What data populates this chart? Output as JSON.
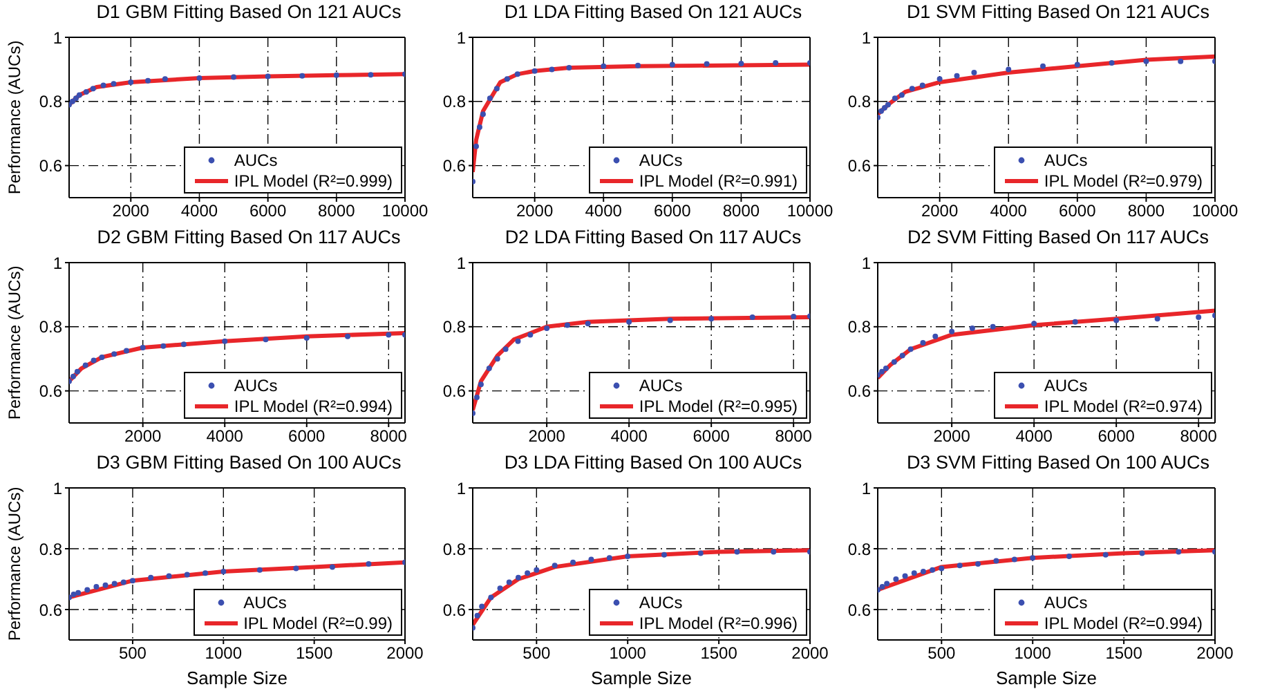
{
  "chart_data": [
    {
      "type": "scatter",
      "title": "D1 GBM Fitting Based On 121 AUCs",
      "ylabel": "Performance (AUCs)",
      "xlim": [
        200,
        10000
      ],
      "xticks": [
        2000,
        4000,
        6000,
        8000,
        10000
      ],
      "ylim": [
        0.5,
        1
      ],
      "yticks": [
        0.6,
        0.8,
        1
      ],
      "grid": true,
      "legend": "bottom right",
      "series": [
        {
          "name": "AUCs",
          "type": "scatter",
          "marker": "circle",
          "color": "#3b4fb0",
          "x": [
            200,
            300,
            400,
            500,
            700,
            900,
            1200,
            1500,
            2000,
            2500,
            3000,
            4000,
            5000,
            6000,
            7000,
            8000,
            9000,
            10000
          ],
          "values": [
            0.79,
            0.8,
            0.81,
            0.82,
            0.83,
            0.84,
            0.85,
            0.855,
            0.86,
            0.865,
            0.87,
            0.873,
            0.876,
            0.878,
            0.88,
            0.882,
            0.883,
            0.885
          ]
        },
        {
          "name": "IPL Model (R²=0.999)",
          "type": "line",
          "color": "#e8262a",
          "x": [
            200,
            500,
            1000,
            2000,
            4000,
            6000,
            8000,
            10000
          ],
          "values": [
            0.79,
            0.82,
            0.845,
            0.86,
            0.873,
            0.878,
            0.882,
            0.885
          ]
        }
      ]
    },
    {
      "type": "scatter",
      "title": "D1 LDA Fitting Based On 121 AUCs",
      "xlim": [
        200,
        10000
      ],
      "xticks": [
        2000,
        4000,
        6000,
        8000,
        10000
      ],
      "ylim": [
        0.5,
        1
      ],
      "yticks": [
        0.6,
        0.8,
        1
      ],
      "grid": true,
      "legend": "bottom right",
      "series": [
        {
          "name": "AUCs",
          "type": "scatter",
          "marker": "circle",
          "color": "#3b4fb0",
          "x": [
            200,
            300,
            400,
            500,
            700,
            900,
            1200,
            1500,
            2000,
            2500,
            3000,
            4000,
            5000,
            6000,
            7000,
            8000,
            9000,
            10000
          ],
          "values": [
            0.55,
            0.66,
            0.72,
            0.76,
            0.81,
            0.84,
            0.87,
            0.885,
            0.895,
            0.9,
            0.905,
            0.91,
            0.912,
            0.915,
            0.917,
            0.918,
            0.92,
            0.92
          ]
        },
        {
          "name": "IPL Model (R²=0.991)",
          "type": "line",
          "color": "#e8262a",
          "x": [
            200,
            300,
            500,
            1000,
            1500,
            2000,
            3000,
            5000,
            10000
          ],
          "values": [
            0.58,
            0.68,
            0.77,
            0.86,
            0.885,
            0.895,
            0.905,
            0.91,
            0.915
          ]
        }
      ]
    },
    {
      "type": "scatter",
      "title": "D1 SVM Fitting Based On 121 AUCs",
      "xlim": [
        200,
        10000
      ],
      "xticks": [
        2000,
        4000,
        6000,
        8000,
        10000
      ],
      "ylim": [
        0.5,
        1
      ],
      "yticks": [
        0.6,
        0.8,
        1
      ],
      "grid": true,
      "legend": "bottom right",
      "series": [
        {
          "name": "AUCs",
          "type": "scatter",
          "marker": "circle",
          "color": "#3b4fb0",
          "x": [
            200,
            300,
            400,
            500,
            700,
            900,
            1200,
            1500,
            2000,
            2500,
            3000,
            4000,
            5000,
            6000,
            7000,
            8000,
            9000,
            10000
          ],
          "values": [
            0.75,
            0.77,
            0.78,
            0.79,
            0.81,
            0.82,
            0.84,
            0.85,
            0.87,
            0.88,
            0.89,
            0.9,
            0.91,
            0.915,
            0.92,
            0.925,
            0.925,
            0.925
          ]
        },
        {
          "name": "IPL Model (R²=0.979)",
          "type": "line",
          "color": "#e8262a",
          "x": [
            200,
            500,
            1000,
            2000,
            4000,
            6000,
            8000,
            10000
          ],
          "values": [
            0.76,
            0.79,
            0.83,
            0.86,
            0.89,
            0.91,
            0.93,
            0.94
          ]
        }
      ]
    },
    {
      "type": "scatter",
      "title": "D2 GBM Fitting Based On 117 AUCs",
      "ylabel": "Performance (AUCs)",
      "xlim": [
        200,
        8400
      ],
      "xticks": [
        2000,
        4000,
        6000,
        8000
      ],
      "ylim": [
        0.5,
        1
      ],
      "yticks": [
        0.6,
        0.8,
        1
      ],
      "grid": true,
      "legend": "bottom right",
      "series": [
        {
          "name": "AUCs",
          "type": "scatter",
          "marker": "circle",
          "color": "#3b4fb0",
          "x": [
            200,
            300,
            400,
            600,
            800,
            1000,
            1300,
            1600,
            2000,
            2500,
            3000,
            4000,
            5000,
            6000,
            7000,
            8000,
            8400
          ],
          "values": [
            0.63,
            0.645,
            0.66,
            0.68,
            0.695,
            0.705,
            0.715,
            0.725,
            0.735,
            0.74,
            0.745,
            0.755,
            0.76,
            0.765,
            0.77,
            0.775,
            0.775
          ]
        },
        {
          "name": "IPL Model (R²=0.994)",
          "type": "line",
          "color": "#e8262a",
          "x": [
            200,
            500,
            1000,
            2000,
            4000,
            6000,
            8400
          ],
          "values": [
            0.63,
            0.67,
            0.705,
            0.735,
            0.755,
            0.77,
            0.78
          ]
        }
      ]
    },
    {
      "type": "scatter",
      "title": "D2 LDA Fitting Based On 117 AUCs",
      "xlim": [
        200,
        8400
      ],
      "xticks": [
        2000,
        4000,
        6000,
        8000
      ],
      "ylim": [
        0.5,
        1
      ],
      "yticks": [
        0.6,
        0.8,
        1
      ],
      "grid": true,
      "legend": "bottom right",
      "series": [
        {
          "name": "AUCs",
          "type": "scatter",
          "marker": "circle",
          "color": "#3b4fb0",
          "x": [
            200,
            300,
            400,
            600,
            800,
            1000,
            1300,
            1600,
            2000,
            2500,
            3000,
            4000,
            5000,
            6000,
            7000,
            8000,
            8400
          ],
          "values": [
            0.53,
            0.58,
            0.62,
            0.67,
            0.7,
            0.73,
            0.755,
            0.775,
            0.795,
            0.805,
            0.81,
            0.815,
            0.82,
            0.825,
            0.83,
            0.832,
            0.833
          ]
        },
        {
          "name": "IPL Model (R²=0.995)",
          "type": "line",
          "color": "#e8262a",
          "x": [
            200,
            400,
            800,
            1200,
            2000,
            3000,
            5000,
            8400
          ],
          "values": [
            0.54,
            0.63,
            0.71,
            0.76,
            0.8,
            0.815,
            0.825,
            0.83
          ]
        }
      ]
    },
    {
      "type": "scatter",
      "title": "D2 SVM Fitting Based On 117 AUCs",
      "xlim": [
        200,
        8400
      ],
      "xticks": [
        2000,
        4000,
        6000,
        8000
      ],
      "ylim": [
        0.5,
        1
      ],
      "yticks": [
        0.6,
        0.8,
        1
      ],
      "grid": true,
      "legend": "bottom right",
      "series": [
        {
          "name": "AUCs",
          "type": "scatter",
          "marker": "circle",
          "color": "#3b4fb0",
          "x": [
            200,
            300,
            400,
            600,
            800,
            1000,
            1300,
            1600,
            2000,
            2500,
            3000,
            4000,
            5000,
            6000,
            7000,
            8000,
            8400
          ],
          "values": [
            0.65,
            0.66,
            0.67,
            0.69,
            0.71,
            0.73,
            0.75,
            0.77,
            0.785,
            0.795,
            0.8,
            0.81,
            0.815,
            0.82,
            0.825,
            0.83,
            0.835
          ]
        },
        {
          "name": "IPL Model (R²=0.974)",
          "type": "line",
          "color": "#e8262a",
          "x": [
            200,
            500,
            1000,
            2000,
            4000,
            6000,
            8400
          ],
          "values": [
            0.64,
            0.68,
            0.73,
            0.775,
            0.805,
            0.825,
            0.85
          ]
        }
      ]
    },
    {
      "type": "scatter",
      "title": "D3 GBM Fitting Based On 100 AUCs",
      "ylabel": "Performance (AUCs)",
      "xlabel": "Sample Size",
      "xlim": [
        150,
        2000
      ],
      "xticks": [
        500,
        1000,
        1500,
        2000
      ],
      "ylim": [
        0.5,
        1
      ],
      "yticks": [
        0.6,
        0.8,
        1
      ],
      "grid": true,
      "legend": "bottom right",
      "series": [
        {
          "name": "AUCs",
          "type": "scatter",
          "marker": "circle",
          "color": "#3b4fb0",
          "x": [
            150,
            175,
            200,
            250,
            300,
            350,
            400,
            450,
            500,
            600,
            700,
            800,
            900,
            1000,
            1200,
            1400,
            1600,
            1800,
            2000
          ],
          "values": [
            0.64,
            0.65,
            0.655,
            0.665,
            0.675,
            0.68,
            0.685,
            0.69,
            0.695,
            0.705,
            0.71,
            0.715,
            0.72,
            0.725,
            0.73,
            0.735,
            0.74,
            0.75,
            0.755
          ]
        },
        {
          "name": "IPL Model (R²=0.99)",
          "type": "line",
          "color": "#e8262a",
          "x": [
            150,
            500,
            1000,
            1500,
            2000
          ],
          "values": [
            0.64,
            0.695,
            0.725,
            0.74,
            0.755
          ]
        }
      ]
    },
    {
      "type": "scatter",
      "title": "D3 LDA Fitting Based On 100 AUCs",
      "xlabel": "Sample Size",
      "xlim": [
        150,
        2000
      ],
      "xticks": [
        500,
        1000,
        1500,
        2000
      ],
      "ylim": [
        0.5,
        1
      ],
      "yticks": [
        0.6,
        0.8,
        1
      ],
      "grid": true,
      "legend": "bottom right",
      "series": [
        {
          "name": "AUCs",
          "type": "scatter",
          "marker": "circle",
          "color": "#3b4fb0",
          "x": [
            150,
            175,
            200,
            250,
            300,
            350,
            400,
            450,
            500,
            600,
            700,
            800,
            900,
            1000,
            1200,
            1400,
            1600,
            1800,
            2000
          ],
          "values": [
            0.54,
            0.58,
            0.61,
            0.64,
            0.67,
            0.69,
            0.705,
            0.72,
            0.73,
            0.745,
            0.755,
            0.765,
            0.77,
            0.775,
            0.78,
            0.785,
            0.79,
            0.79,
            0.79
          ]
        },
        {
          "name": "IPL Model (R²=0.996)",
          "type": "line",
          "color": "#e8262a",
          "x": [
            150,
            250,
            400,
            600,
            1000,
            1500,
            2000
          ],
          "values": [
            0.55,
            0.64,
            0.7,
            0.74,
            0.775,
            0.79,
            0.795
          ]
        }
      ]
    },
    {
      "type": "scatter",
      "title": "D3 SVM Fitting Based On 100 AUCs",
      "xlabel": "Sample Size",
      "xlim": [
        150,
        2000
      ],
      "xticks": [
        500,
        1000,
        1500,
        2000
      ],
      "ylim": [
        0.5,
        1
      ],
      "yticks": [
        0.6,
        0.8,
        1
      ],
      "grid": true,
      "legend": "bottom right",
      "series": [
        {
          "name": "AUCs",
          "type": "scatter",
          "marker": "circle",
          "color": "#3b4fb0",
          "x": [
            150,
            175,
            200,
            250,
            300,
            350,
            400,
            450,
            500,
            600,
            700,
            800,
            900,
            1000,
            1200,
            1400,
            1600,
            1800,
            2000
          ],
          "values": [
            0.665,
            0.675,
            0.685,
            0.7,
            0.71,
            0.72,
            0.725,
            0.73,
            0.735,
            0.745,
            0.75,
            0.76,
            0.765,
            0.77,
            0.775,
            0.78,
            0.785,
            0.79,
            0.79
          ]
        },
        {
          "name": "IPL Model (R²=0.994)",
          "type": "line",
          "color": "#e8262a",
          "x": [
            150,
            500,
            1000,
            1500,
            2000
          ],
          "values": [
            0.665,
            0.74,
            0.77,
            0.785,
            0.795
          ]
        }
      ]
    }
  ]
}
